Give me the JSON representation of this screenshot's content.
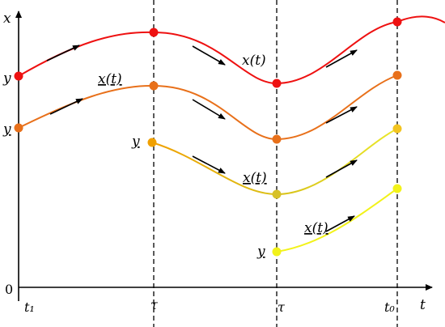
{
  "axes": {
    "x_axis_label": "t",
    "y_axis_label": "x",
    "origin_label": "0",
    "t_ticks": [
      "t₁",
      "τ",
      "τ",
      "t₀"
    ]
  },
  "curves": [
    {
      "id": "x",
      "color": "#ee1111",
      "label": "x(t)",
      "label_underlined": false,
      "start_label": "y",
      "start_label_underlined": false
    },
    {
      "id": "x1",
      "color": "#e8701a",
      "label": "x(t)",
      "label_underlined": true,
      "start_label": "y",
      "start_label_underlined": true
    },
    {
      "id": "x2",
      "color": "#f0a000",
      "end_color": "#e8e82a",
      "label": "x(t)",
      "label_underlined": true,
      "start_label": "y",
      "start_label_underlined": true
    },
    {
      "id": "x3",
      "color": "#f2f21a",
      "label": "x(t)",
      "label_underlined": true,
      "start_label": "y",
      "start_label_underlined": true
    }
  ],
  "colors": {
    "axis": "#000000",
    "dashed": "#000000",
    "arrow": "#000000"
  }
}
